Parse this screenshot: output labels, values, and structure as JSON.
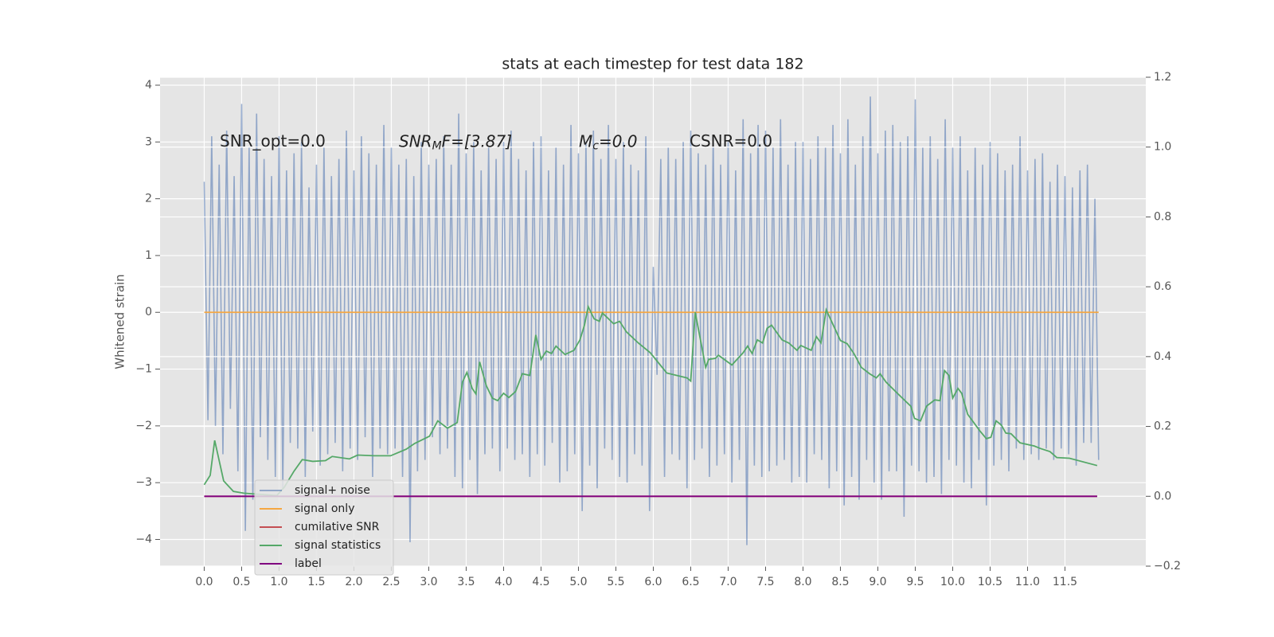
{
  "chart_data": {
    "type": "line",
    "title": "stats at each timestep for test data 182",
    "ylabel": "Whitened strain",
    "xlim": [
      -0.59,
      12.58
    ],
    "ylim": [
      -4.47,
      4.14
    ],
    "y2lim": [
      -0.2,
      1.2
    ],
    "grid": true,
    "xticks": [
      {
        "value": 0,
        "label": "0.0"
      },
      0.5,
      {
        "value": 1,
        "label": "1.0"
      },
      1.5,
      {
        "value": 2,
        "label": "2.0"
      },
      2.5,
      {
        "value": 3,
        "label": "3.0"
      },
      3.5,
      {
        "value": 4,
        "label": "4.0"
      },
      4.5,
      {
        "value": 5,
        "label": "5.0"
      },
      5.5,
      {
        "value": 6,
        "label": "6.0"
      },
      6.5,
      {
        "value": 7,
        "label": "7.0"
      },
      7.5,
      {
        "value": 8,
        "label": "8.0"
      },
      8.5,
      {
        "value": 9,
        "label": "9.0"
      },
      9.5,
      {
        "value": 10,
        "label": "10.0"
      },
      10.5,
      {
        "value": 11,
        "label": "11.0"
      },
      11.5
    ],
    "yticks": [
      {
        "value": -4,
        "label": "−4"
      },
      {
        "value": -3,
        "label": "−3"
      },
      {
        "value": -2,
        "label": "−2"
      },
      {
        "value": -1,
        "label": "−1"
      },
      0,
      1,
      2,
      3,
      4
    ],
    "y2ticks": [
      {
        "value": -0.2,
        "label": "−0.2"
      },
      {
        "value": 0,
        "label": "0.0"
      },
      0.2,
      0.4,
      0.6,
      0.8,
      {
        "value": 1,
        "label": "1.0"
      },
      1.2
    ],
    "annotations": [
      {
        "text": "SNR_opt=0.0"
      },
      {
        "base": "SNR",
        "sub": "M",
        "rest": "F=[3.87]"
      },
      {
        "base": "M",
        "sub": "c",
        "rest": "=0.0"
      },
      {
        "text": "CSNR=0.0"
      }
    ],
    "series": [
      {
        "name": "signal+ noise",
        "color": "#4c72b0",
        "alpha": 0.55,
        "x": [
          0,
          0.05,
          0.1,
          0.15,
          0.2,
          0.25,
          0.3,
          0.35,
          0.4,
          0.45,
          0.5,
          0.55,
          0.6,
          0.65,
          0.7,
          0.75,
          0.8,
          0.85,
          0.9,
          0.95,
          1,
          1.05,
          1.1,
          1.15,
          1.2,
          1.25,
          1.3,
          1.35,
          1.4,
          1.45,
          1.5,
          1.55,
          1.6,
          1.65,
          1.7,
          1.75,
          1.8,
          1.85,
          1.9,
          1.95,
          2,
          2.05,
          2.1,
          2.15,
          2.2,
          2.25,
          2.3,
          2.35,
          2.4,
          2.45,
          2.5,
          2.55,
          2.6,
          2.65,
          2.7,
          2.75,
          2.8,
          2.85,
          2.9,
          2.95,
          3,
          3.05,
          3.1,
          3.15,
          3.2,
          3.25,
          3.3,
          3.35,
          3.4,
          3.45,
          3.5,
          3.55,
          3.6,
          3.65,
          3.7,
          3.75,
          3.8,
          3.85,
          3.9,
          3.95,
          4,
          4.05,
          4.1,
          4.15,
          4.2,
          4.25,
          4.3,
          4.35,
          4.4,
          4.45,
          4.5,
          4.55,
          4.6,
          4.65,
          4.7,
          4.75,
          4.8,
          4.85,
          4.9,
          4.95,
          5,
          5.05,
          5.1,
          5.15,
          5.2,
          5.25,
          5.3,
          5.35,
          5.4,
          5.45,
          5.5,
          5.55,
          5.6,
          5.65,
          5.7,
          5.75,
          5.8,
          5.85,
          5.9,
          5.95,
          6,
          6.05,
          6.1,
          6.15,
          6.2,
          6.25,
          6.3,
          6.35,
          6.4,
          6.45,
          6.5,
          6.55,
          6.6,
          6.65,
          6.7,
          6.75,
          6.8,
          6.85,
          6.9,
          6.95,
          7,
          7.05,
          7.1,
          7.15,
          7.2,
          7.25,
          7.3,
          7.35,
          7.4,
          7.45,
          7.5,
          7.55,
          7.6,
          7.65,
          7.7,
          7.75,
          7.8,
          7.85,
          7.9,
          7.95,
          8,
          8.05,
          8.1,
          8.15,
          8.2,
          8.25,
          8.3,
          8.35,
          8.4,
          8.45,
          8.5,
          8.55,
          8.6,
          8.65,
          8.7,
          8.75,
          8.8,
          8.85,
          8.9,
          8.95,
          9,
          9.05,
          9.1,
          9.15,
          9.2,
          9.25,
          9.3,
          9.35,
          9.4,
          9.45,
          9.5,
          9.55,
          9.6,
          9.65,
          9.7,
          9.75,
          9.8,
          9.85,
          9.9,
          9.95,
          10,
          10.05,
          10.1,
          10.15,
          10.2,
          10.25,
          10.3,
          10.35,
          10.4,
          10.45,
          10.5,
          10.55,
          10.6,
          10.65,
          10.7,
          10.75,
          10.8,
          10.85,
          10.9,
          10.95,
          11,
          11.05,
          11.1,
          11.15,
          11.2,
          11.25,
          11.3,
          11.35,
          11.4,
          11.45,
          11.5,
          11.55,
          11.6,
          11.65,
          11.7,
          11.75,
          11.8,
          11.85,
          11.9,
          11.95
        ],
        "values": [
          2.3,
          -1.9,
          3.1,
          -2.0,
          2.6,
          -2.5,
          3.2,
          -1.7,
          2.4,
          -2.8,
          3.67,
          -3.85,
          2.9,
          -3.3,
          3.5,
          -2.2,
          2.7,
          -2.6,
          2.4,
          -2.9,
          3.1,
          -3.1,
          2.5,
          -2.3,
          2.8,
          -2.4,
          3.0,
          -2.9,
          2.2,
          -2.1,
          2.6,
          -2.7,
          2.9,
          -2.5,
          2.4,
          -2.3,
          2.7,
          -2.8,
          3.2,
          -2.4,
          2.5,
          -2.6,
          3.1,
          -2.2,
          2.8,
          -2.9,
          2.6,
          -2.4,
          3.3,
          -2.5,
          2.9,
          -2.4,
          2.6,
          -2.9,
          2.7,
          -4.05,
          2.4,
          -2.8,
          3.0,
          -2.6,
          2.6,
          -2.2,
          2.7,
          -2.5,
          3.1,
          -2.4,
          2.6,
          -2.9,
          3.5,
          -3.1,
          2.8,
          -2.6,
          3.0,
          -3.2,
          2.5,
          -2.5,
          2.9,
          -2.4,
          2.7,
          -2.8,
          3.0,
          -2.4,
          3.2,
          -2.6,
          2.7,
          -2.5,
          2.5,
          -2.9,
          3.0,
          -2.5,
          3.1,
          -2.7,
          2.5,
          -2.3,
          2.9,
          -3.0,
          2.6,
          -2.8,
          3.3,
          -2.5,
          2.8,
          -3.5,
          3.0,
          -2.7,
          3.2,
          -3.1,
          2.7,
          -2.4,
          3.3,
          -2.6,
          2.7,
          -2.9,
          3.0,
          -3.0,
          2.6,
          -2.5,
          2.5,
          -2.7,
          3.1,
          -3.5,
          0.8,
          -1.1,
          2.7,
          -2.9,
          2.9,
          -2.5,
          2.7,
          -2.6,
          3.0,
          -3.1,
          3.2,
          -2.6,
          2.8,
          -2.4,
          2.6,
          -2.9,
          3.1,
          -2.7,
          2.6,
          -2.5,
          3.0,
          -3.0,
          2.5,
          -2.6,
          3.4,
          -4.1,
          2.8,
          -2.7,
          3.3,
          -2.9,
          3.2,
          -2.8,
          2.9,
          -2.7,
          3.4,
          -2.6,
          2.6,
          -3.0,
          3.0,
          -2.9,
          3.0,
          -3.0,
          2.7,
          -2.5,
          3.1,
          -2.6,
          2.9,
          -3.1,
          3.3,
          -2.8,
          2.8,
          -3.4,
          3.4,
          -2.9,
          2.6,
          -3.3,
          3.1,
          -2.6,
          3.8,
          -3.0,
          2.8,
          -3.3,
          3.2,
          -2.8,
          3.3,
          -2.8,
          3.0,
          -3.6,
          3.1,
          -2.7,
          3.75,
          -2.8,
          2.9,
          -3.0,
          3.1,
          -2.9,
          2.7,
          -3.2,
          3.4,
          -2.6,
          2.9,
          -2.7,
          3.1,
          -3.0,
          2.5,
          -3.1,
          2.9,
          -2.6,
          2.6,
          -3.4,
          3.0,
          -2.7,
          2.8,
          -2.6,
          2.5,
          -2.8,
          2.6,
          -2.4,
          3.1,
          -2.6,
          2.5,
          -2.5,
          2.7,
          -2.6,
          2.8,
          -2.4,
          2.3,
          -2.6,
          2.6,
          -2.4,
          2.4,
          -2.5,
          2.2,
          -2.7,
          2.5,
          -2.3,
          2.6,
          -2.3,
          2.0,
          -2.6
        ]
      },
      {
        "name": "signal only",
        "color": "#f5a742",
        "x": [
          0,
          11.95
        ],
        "values": [
          0,
          0
        ]
      },
      {
        "name": "cumilative SNR",
        "color": "#c44e52",
        "axis": "y2",
        "x": [
          0,
          11.93
        ],
        "values": [
          0,
          0
        ]
      },
      {
        "name": "signal statistics",
        "color": "#55a868",
        "axis": "y2",
        "x": [
          0,
          0.08,
          0.14,
          0.26,
          0.39,
          0.53,
          0.97,
          1.07,
          1.2,
          1.31,
          1.45,
          1.62,
          1.71,
          1.94,
          2.05,
          2.27,
          2.49,
          2.7,
          2.81,
          3.01,
          3.12,
          3.25,
          3.38,
          3.45,
          3.51,
          3.58,
          3.63,
          3.68,
          3.77,
          3.85,
          3.92,
          4.0,
          4.07,
          4.16,
          4.25,
          4.35,
          4.43,
          4.5,
          4.57,
          4.64,
          4.7,
          4.82,
          4.94,
          5.02,
          5.08,
          5.13,
          5.21,
          5.28,
          5.32,
          5.47,
          5.55,
          5.64,
          5.8,
          5.96,
          6.18,
          6.45,
          6.5,
          6.56,
          6.7,
          6.74,
          6.83,
          6.87,
          7.05,
          7.2,
          7.26,
          7.32,
          7.39,
          7.46,
          7.52,
          7.58,
          7.72,
          7.81,
          7.92,
          7.97,
          8.11,
          8.18,
          8.24,
          8.31,
          8.5,
          8.59,
          8.68,
          8.78,
          8.89,
          8.98,
          9.03,
          9.11,
          9.27,
          9.44,
          9.49,
          9.57,
          9.65,
          9.76,
          9.83,
          9.89,
          9.95,
          10.0,
          10.07,
          10.12,
          10.2,
          10.36,
          10.45,
          10.51,
          10.58,
          10.65,
          10.71,
          10.78,
          10.9,
          11.09,
          11.17,
          11.3,
          11.39,
          11.56,
          11.93
        ],
        "values": [
          0.033,
          0.06,
          0.16,
          0.044,
          0.014,
          0.009,
          0.002,
          0.026,
          0.072,
          0.105,
          0.1,
          0.102,
          0.114,
          0.107,
          0.118,
          0.116,
          0.116,
          0.135,
          0.151,
          0.172,
          0.216,
          0.195,
          0.211,
          0.327,
          0.355,
          0.309,
          0.293,
          0.385,
          0.316,
          0.281,
          0.274,
          0.295,
          0.283,
          0.3,
          0.351,
          0.346,
          0.462,
          0.392,
          0.416,
          0.409,
          0.43,
          0.406,
          0.418,
          0.448,
          0.49,
          0.543,
          0.508,
          0.501,
          0.525,
          0.494,
          0.501,
          0.471,
          0.439,
          0.411,
          0.353,
          0.339,
          0.33,
          0.527,
          0.369,
          0.392,
          0.395,
          0.404,
          0.376,
          0.411,
          0.43,
          0.409,
          0.448,
          0.439,
          0.481,
          0.49,
          0.448,
          0.439,
          0.418,
          0.432,
          0.418,
          0.457,
          0.439,
          0.534,
          0.446,
          0.437,
          0.409,
          0.369,
          0.351,
          0.339,
          0.351,
          0.327,
          0.293,
          0.258,
          0.223,
          0.216,
          0.258,
          0.276,
          0.274,
          0.36,
          0.346,
          0.281,
          0.309,
          0.295,
          0.235,
          0.188,
          0.165,
          0.169,
          0.216,
          0.204,
          0.181,
          0.179,
          0.153,
          0.144,
          0.137,
          0.128,
          0.111,
          0.109,
          0.088
        ]
      },
      {
        "name": "label",
        "color": "#800080",
        "axis": "y2",
        "x": [
          0,
          11.93
        ],
        "values": [
          0,
          0
        ]
      }
    ]
  }
}
